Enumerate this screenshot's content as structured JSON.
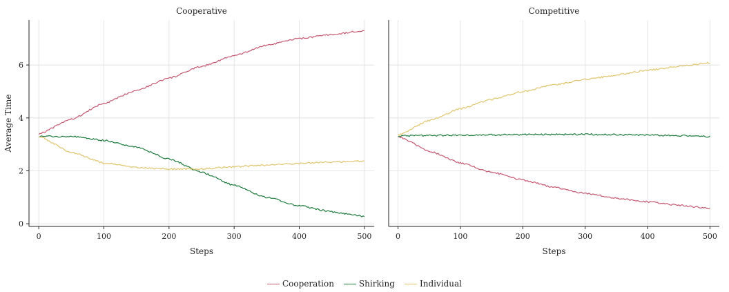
{
  "chart_data": [
    {
      "type": "line",
      "title": "Cooperative",
      "xlabel": "Steps",
      "ylabel": "Average Time",
      "xlim": [
        -15,
        515
      ],
      "ylim": [
        -0.1,
        7.7
      ],
      "xticks": [
        0,
        100,
        200,
        300,
        400,
        500
      ],
      "yticks": [
        0,
        2,
        4,
        6
      ],
      "grid": true,
      "series": [
        {
          "name": "Cooperation",
          "color": "#c4566e",
          "x": [
            0,
            50,
            100,
            150,
            200,
            250,
            300,
            350,
            400,
            450,
            500
          ],
          "y": [
            3.4,
            3.95,
            4.55,
            5.05,
            5.5,
            5.95,
            6.35,
            6.75,
            7.0,
            7.15,
            7.3
          ]
        },
        {
          "name": "Shirking",
          "color": "#1a7a3a",
          "x": [
            0,
            50,
            100,
            150,
            200,
            250,
            300,
            350,
            400,
            450,
            500
          ],
          "y": [
            3.3,
            3.3,
            3.15,
            2.9,
            2.45,
            1.95,
            1.45,
            1.0,
            0.68,
            0.45,
            0.28
          ]
        },
        {
          "name": "Individual",
          "color": "#e0c46c",
          "x": [
            0,
            50,
            100,
            150,
            200,
            250,
            300,
            350,
            400,
            450,
            500
          ],
          "y": [
            3.3,
            2.7,
            2.3,
            2.12,
            2.07,
            2.08,
            2.15,
            2.22,
            2.28,
            2.33,
            2.38
          ]
        }
      ]
    },
    {
      "type": "line",
      "title": "Competitive",
      "xlabel": "Steps",
      "ylabel": "",
      "xlim": [
        -15,
        515
      ],
      "ylim": [
        -0.1,
        7.7
      ],
      "xticks": [
        0,
        100,
        200,
        300,
        400,
        500
      ],
      "yticks": [],
      "grid": true,
      "series": [
        {
          "name": "Cooperation",
          "color": "#c4566e",
          "x": [
            0,
            50,
            100,
            150,
            200,
            250,
            300,
            350,
            400,
            450,
            500
          ],
          "y": [
            3.3,
            2.75,
            2.3,
            1.95,
            1.65,
            1.38,
            1.15,
            0.97,
            0.83,
            0.7,
            0.58
          ]
        },
        {
          "name": "Shirking",
          "color": "#1a7a3a",
          "x": [
            0,
            50,
            100,
            150,
            200,
            250,
            300,
            350,
            400,
            450,
            500
          ],
          "y": [
            3.32,
            3.34,
            3.35,
            3.36,
            3.37,
            3.37,
            3.38,
            3.37,
            3.35,
            3.33,
            3.3
          ]
        },
        {
          "name": "Individual",
          "color": "#e0c46c",
          "x": [
            0,
            50,
            100,
            150,
            200,
            250,
            300,
            350,
            400,
            450,
            500
          ],
          "y": [
            3.35,
            3.9,
            4.35,
            4.7,
            5.0,
            5.25,
            5.45,
            5.62,
            5.8,
            5.95,
            6.08
          ]
        }
      ]
    }
  ],
  "legend": [
    {
      "label": "Cooperation",
      "color": "#c4566e"
    },
    {
      "label": "Shirking",
      "color": "#1a7a3a"
    },
    {
      "label": "Individual",
      "color": "#e0c46c"
    }
  ]
}
